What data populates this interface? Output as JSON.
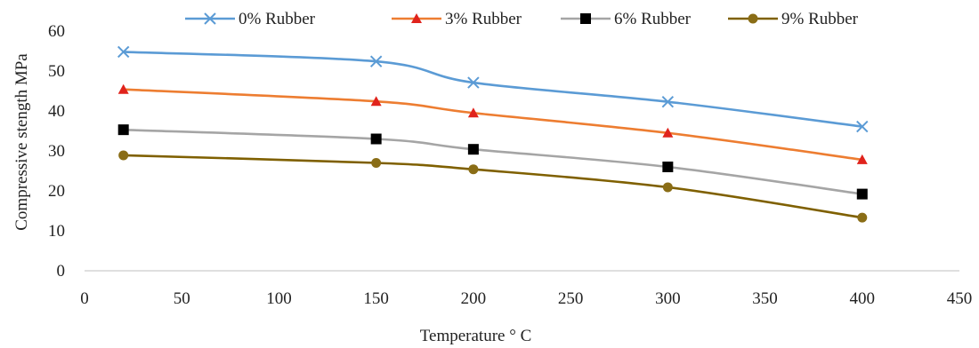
{
  "chart_data": {
    "type": "line",
    "title": "",
    "xlabel": "Temperature ° C",
    "ylabel": "Compressive stength MPa",
    "xlim": [
      0,
      450
    ],
    "ylim": [
      0,
      60
    ],
    "x_ticks": [
      0,
      50,
      100,
      150,
      200,
      250,
      300,
      350,
      400,
      450
    ],
    "y_ticks": [
      0,
      10,
      20,
      30,
      40,
      50,
      60
    ],
    "grid": false,
    "legend_position": "top",
    "x": [
      20,
      150,
      200,
      300,
      400
    ],
    "series": [
      {
        "name": "0% Rubber",
        "color": "#5b9bd5",
        "marker": "x",
        "values": [
          54.8,
          52.4,
          47.1,
          42.3,
          36.1
        ]
      },
      {
        "name": "3% Rubber",
        "color": "#ed7d31",
        "marker": "triangle",
        "markerColor": "#e0231c",
        "values": [
          45.4,
          42.4,
          39.5,
          34.5,
          27.8
        ]
      },
      {
        "name": "6% Rubber",
        "color": "#a5a5a5",
        "marker": "square",
        "markerColor": "#000000",
        "values": [
          35.3,
          33.0,
          30.4,
          26.0,
          19.2
        ]
      },
      {
        "name": "9% Rubber",
        "color": "#7f6000",
        "marker": "circle",
        "markerColor": "#8a6d16",
        "values": [
          28.9,
          27.0,
          25.4,
          20.9,
          13.3
        ]
      }
    ]
  }
}
